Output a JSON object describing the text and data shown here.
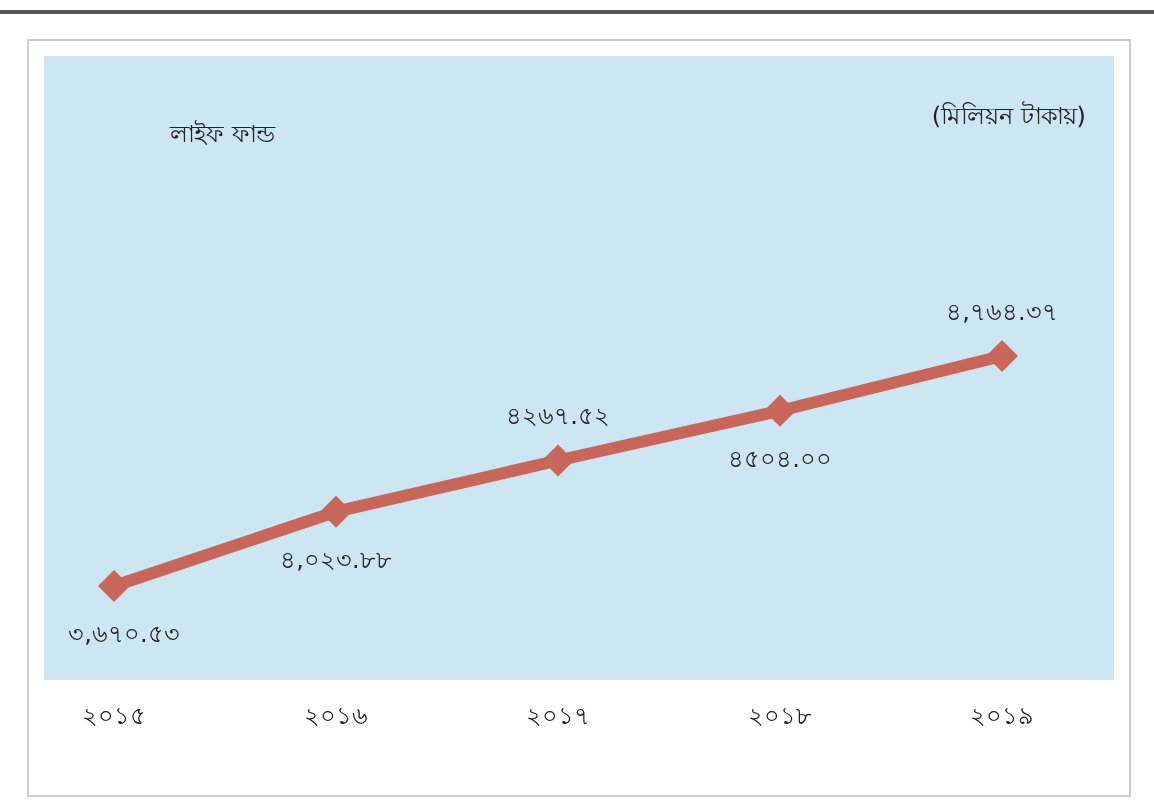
{
  "chart_data": {
    "type": "line",
    "title": "লাইফ ফান্ড",
    "annotations": [
      "(মিলিয়ন টাকায়)"
    ],
    "categories": [
      "২০১৫",
      "২০১৬",
      "২০১৭",
      "২০১৮",
      "২০১৯"
    ],
    "series": [
      {
        "color": "#c8665a",
        "values": [
          3670.53,
          4023.88,
          4267.52,
          4504.0,
          4764.37
        ],
        "value_labels": [
          "৩,৬৭০.৫৩",
          "৪,০২৩.৮৮",
          "৪২৬৭.৫২",
          "৪৫০৪.০০",
          "৪,৭৬৪.৩৭"
        ]
      }
    ],
    "marker": "diamond"
  }
}
